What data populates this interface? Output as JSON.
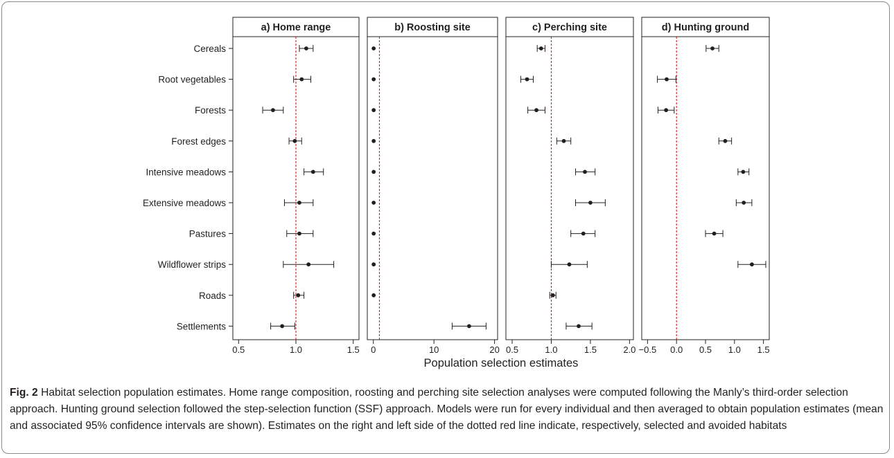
{
  "chart_data": {
    "type": "scatter",
    "xlabel": "Population selection estimates",
    "categories": [
      "Cereals",
      "Root vegetables",
      "Forests",
      "Forest edges",
      "Intensive meadows",
      "Extensive meadows",
      "Pastures",
      "Wildflower strips",
      "Roads",
      "Settlements"
    ],
    "reference_line": {
      "color": "#d7191c",
      "style": "dotted"
    },
    "panels": [
      {
        "title": "a) Home range",
        "xlim": [
          0.45,
          1.55
        ],
        "xticks": [
          "0.5",
          "1.0",
          "1.5"
        ],
        "xtick_values": [
          0.5,
          1.0,
          1.5
        ],
        "ref": 1.0,
        "series": [
          {
            "mean": 1.09,
            "lo": 1.03,
            "hi": 1.15
          },
          {
            "mean": 1.05,
            "lo": 0.98,
            "hi": 1.13
          },
          {
            "mean": 0.8,
            "lo": 0.71,
            "hi": 0.89
          },
          {
            "mean": 0.99,
            "lo": 0.94,
            "hi": 1.05
          },
          {
            "mean": 1.15,
            "lo": 1.07,
            "hi": 1.24
          },
          {
            "mean": 1.03,
            "lo": 0.9,
            "hi": 1.15
          },
          {
            "mean": 1.03,
            "lo": 0.92,
            "hi": 1.15
          },
          {
            "mean": 1.11,
            "lo": 0.89,
            "hi": 1.33
          },
          {
            "mean": 1.02,
            "lo": 0.98,
            "hi": 1.07
          },
          {
            "mean": 0.88,
            "lo": 0.78,
            "hi": 0.99
          }
        ]
      },
      {
        "title": "b) Roosting site",
        "xlim": [
          -1.0,
          20.5
        ],
        "xticks": [
          "0",
          "10",
          "20"
        ],
        "xtick_values": [
          0,
          10,
          20
        ],
        "ref": 1.0,
        "series": [
          {
            "mean": 0.05,
            "lo": 0.05,
            "hi": 0.05
          },
          {
            "mean": 0.05,
            "lo": 0.05,
            "hi": 0.05
          },
          {
            "mean": 0.05,
            "lo": 0.05,
            "hi": 0.05
          },
          {
            "mean": 0.05,
            "lo": 0.05,
            "hi": 0.05
          },
          {
            "mean": 0.05,
            "lo": 0.05,
            "hi": 0.05
          },
          {
            "mean": 0.05,
            "lo": 0.05,
            "hi": 0.05
          },
          {
            "mean": 0.05,
            "lo": 0.05,
            "hi": 0.05
          },
          {
            "mean": 0.05,
            "lo": 0.05,
            "hi": 0.05
          },
          {
            "mean": 0.05,
            "lo": 0.05,
            "hi": 0.05
          },
          {
            "mean": 15.8,
            "lo": 13.0,
            "hi": 18.6
          }
        ]
      },
      {
        "title": "c) Perching site",
        "xlim": [
          0.42,
          2.05
        ],
        "xticks": [
          "0.5",
          "1.0",
          "1.5",
          "2.0"
        ],
        "xtick_values": [
          0.5,
          1.0,
          1.5,
          2.0
        ],
        "ref": 1.0,
        "series": [
          {
            "mean": 0.87,
            "lo": 0.82,
            "hi": 0.92
          },
          {
            "mean": 0.69,
            "lo": 0.61,
            "hi": 0.77
          },
          {
            "mean": 0.81,
            "lo": 0.7,
            "hi": 0.92
          },
          {
            "mean": 1.16,
            "lo": 1.07,
            "hi": 1.25
          },
          {
            "mean": 1.43,
            "lo": 1.31,
            "hi": 1.56
          },
          {
            "mean": 1.5,
            "lo": 1.31,
            "hi": 1.69
          },
          {
            "mean": 1.41,
            "lo": 1.25,
            "hi": 1.56
          },
          {
            "mean": 1.23,
            "lo": 1.0,
            "hi": 1.46
          },
          {
            "mean": 1.02,
            "lo": 0.98,
            "hi": 1.06
          },
          {
            "mean": 1.35,
            "lo": 1.19,
            "hi": 1.52
          }
        ]
      },
      {
        "title": "d) Hunting ground",
        "xlim": [
          -0.6,
          1.6
        ],
        "xticks": [
          "−0.5",
          "0.0",
          "0.5",
          "1.0",
          "1.5"
        ],
        "xtick_values": [
          -0.5,
          0.0,
          0.5,
          1.0,
          1.5
        ],
        "ref": 0.0,
        "series": [
          {
            "mean": 0.62,
            "lo": 0.51,
            "hi": 0.73
          },
          {
            "mean": -0.17,
            "lo": -0.33,
            "hi": -0.01
          },
          {
            "mean": -0.18,
            "lo": -0.32,
            "hi": -0.04
          },
          {
            "mean": 0.84,
            "lo": 0.73,
            "hi": 0.95
          },
          {
            "mean": 1.15,
            "lo": 1.06,
            "hi": 1.25
          },
          {
            "mean": 1.16,
            "lo": 1.03,
            "hi": 1.3
          },
          {
            "mean": 0.65,
            "lo": 0.5,
            "hi": 0.8
          },
          {
            "mean": 1.3,
            "lo": 1.06,
            "hi": 1.54
          },
          null,
          null
        ]
      }
    ]
  },
  "caption": {
    "fig_label": "Fig. 2",
    "text": " Habitat selection population estimates. Home range composition, roosting and perching site selection analyses were computed following the Manly’s third-order selection approach. Hunting ground selection followed the step-selection function (SSF) approach. Models were run for every individual and then averaged to obtain population estimates (mean and associated 95% confidence intervals are shown). Estimates on the right and left side of the dotted red line indicate, respectively, selected and avoided habitats"
  }
}
